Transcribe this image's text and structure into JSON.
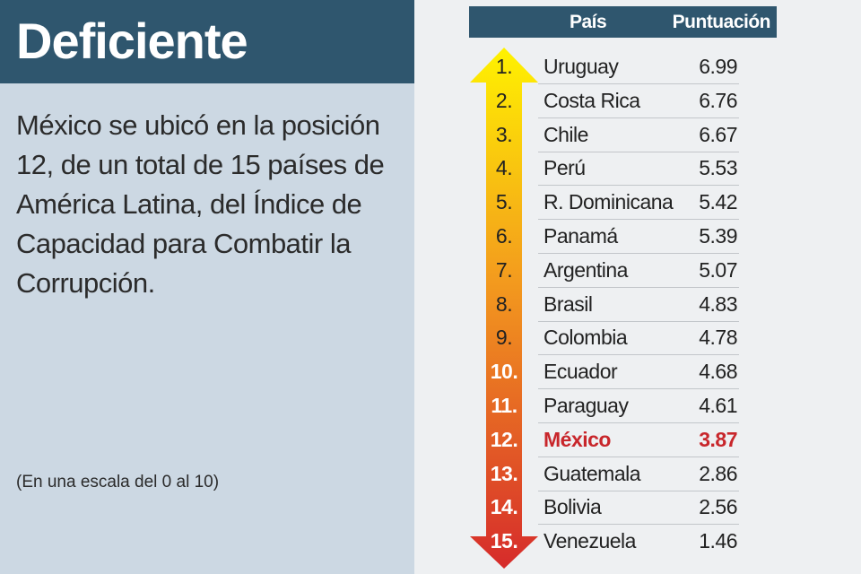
{
  "title": "Deficiente",
  "description": "México se ubicó en la posición 12, de un total de 15 países de América Latina, del Índice de Capacidad para Combatir la Corrupción.",
  "scale_note": "(En una escala del 0 al 10)",
  "colors": {
    "header_bg": "#2f566e",
    "left_bg": "#ccd8e3",
    "highlight": "#c8262b",
    "arrow_top": "#fff200",
    "arrow_mid": "#f39a1e",
    "arrow_bottom": "#d62b2b"
  },
  "chart_data": {
    "type": "table",
    "columns": [
      "País",
      "Puntuación"
    ],
    "highlight_country": "México",
    "rows": [
      {
        "rank": "1.",
        "country": "Uruguay",
        "score": 6.99
      },
      {
        "rank": "2.",
        "country": "Costa Rica",
        "score": 6.76
      },
      {
        "rank": "3.",
        "country": "Chile",
        "score": 6.67
      },
      {
        "rank": "4.",
        "country": "Perú",
        "score": 5.53
      },
      {
        "rank": "5.",
        "country": "R. Dominicana",
        "score": 5.42
      },
      {
        "rank": "6.",
        "country": "Panamá",
        "score": 5.39
      },
      {
        "rank": "7.",
        "country": "Argentina",
        "score": 5.07
      },
      {
        "rank": "8.",
        "country": "Brasil",
        "score": 4.83
      },
      {
        "rank": "9.",
        "country": "Colombia",
        "score": 4.78
      },
      {
        "rank": "10.",
        "country": "Ecuador",
        "score": 4.68
      },
      {
        "rank": "11.",
        "country": "Paraguay",
        "score": 4.61
      },
      {
        "rank": "12.",
        "country": "México",
        "score": 3.87
      },
      {
        "rank": "13.",
        "country": "Guatemala",
        "score": 2.86
      },
      {
        "rank": "14.",
        "country": "Bolivia",
        "score": 2.56
      },
      {
        "rank": "15.",
        "country": "Venezuela",
        "score": 1.46
      }
    ]
  }
}
